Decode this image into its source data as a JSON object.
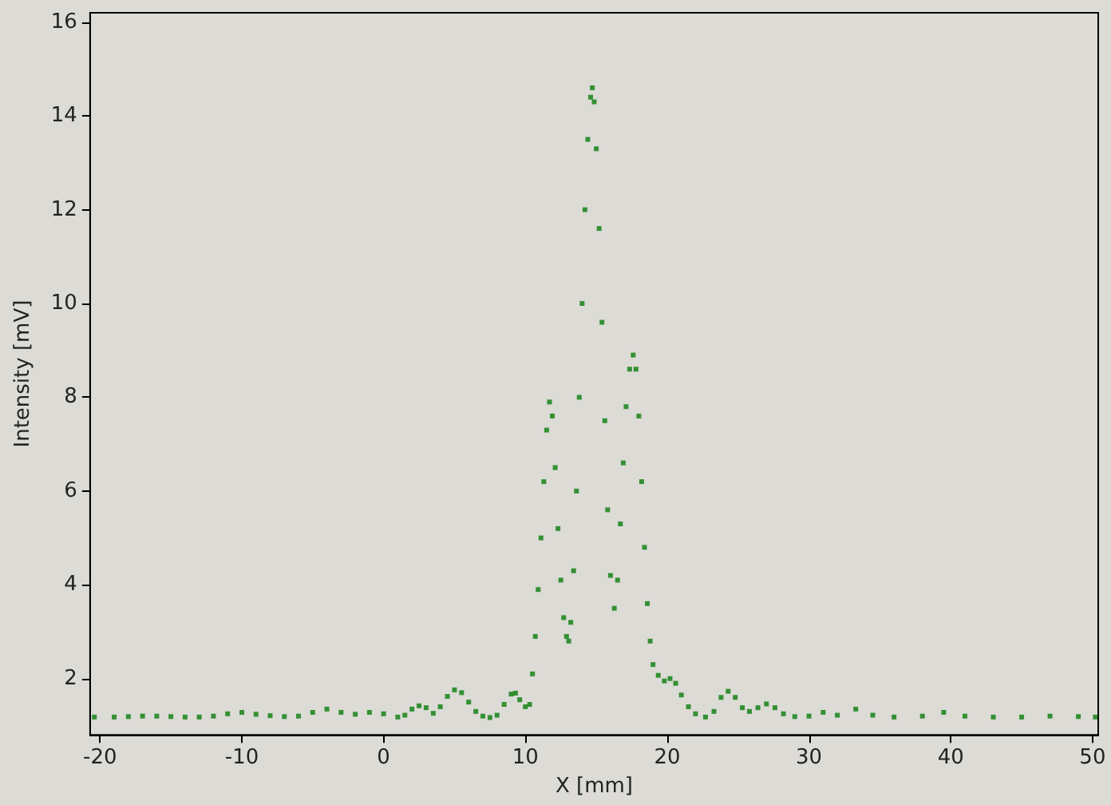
{
  "chart_data": {
    "type": "scatter",
    "xlabel": "X [mm]",
    "ylabel": "Intensity [mV]",
    "marker": "square",
    "grid": false,
    "xlim": [
      -20.7,
      50.4
    ],
    "ylim": [
      0.8,
      16.2
    ],
    "xticks": [
      -20,
      -10,
      0,
      10,
      20,
      30,
      40,
      50
    ],
    "yticks": [
      2,
      4,
      6,
      8,
      10,
      12,
      14,
      16
    ],
    "series": [
      {
        "color": "#0a7d0a",
        "x": [
          -20.4,
          -19,
          -18,
          -17,
          -16,
          -15,
          -14,
          -13,
          -12,
          -11,
          -10,
          -9,
          -8,
          -7,
          -6,
          -5,
          -4,
          -3,
          -2,
          -1,
          0,
          1,
          1.5,
          2,
          2.5,
          3,
          3.5,
          4,
          4.5,
          5,
          5.5,
          6,
          6.5,
          7,
          7.5,
          8,
          8.5,
          9,
          9.3,
          9.6,
          10,
          10.3,
          10.5,
          10.7,
          10.9,
          11.1,
          11.3,
          11.5,
          11.7,
          11.9,
          12.1,
          12.3,
          12.5,
          12.7,
          12.9,
          13.06,
          13.2,
          13.4,
          13.6,
          13.8,
          14.0,
          14.2,
          14.4,
          14.6,
          14.72,
          14.85,
          15.0,
          15.2,
          15.4,
          15.6,
          15.8,
          16.0,
          16.27,
          16.5,
          16.7,
          16.9,
          17.1,
          17.35,
          17.6,
          17.8,
          18.0,
          18.2,
          18.4,
          18.6,
          18.8,
          19.0,
          19.37,
          19.8,
          20.2,
          20.6,
          21,
          21.5,
          22,
          22.7,
          23.3,
          23.8,
          24.3,
          24.8,
          25.3,
          25.8,
          26.4,
          27,
          27.6,
          28.2,
          29,
          30,
          31,
          32,
          33.3,
          34.5,
          36,
          38,
          39.5,
          41,
          43,
          45,
          47,
          49,
          50.2
        ],
        "values": [
          1.18,
          1.18,
          1.19,
          1.2,
          1.2,
          1.19,
          1.18,
          1.18,
          1.2,
          1.25,
          1.28,
          1.24,
          1.21,
          1.19,
          1.2,
          1.28,
          1.35,
          1.28,
          1.24,
          1.28,
          1.25,
          1.18,
          1.22,
          1.35,
          1.42,
          1.38,
          1.26,
          1.4,
          1.62,
          1.76,
          1.7,
          1.5,
          1.3,
          1.2,
          1.17,
          1.22,
          1.45,
          1.67,
          1.69,
          1.55,
          1.4,
          1.45,
          2.1,
          2.9,
          3.9,
          5.0,
          6.2,
          7.3,
          7.9,
          7.6,
          6.5,
          5.2,
          4.1,
          3.3,
          2.9,
          2.8,
          3.2,
          4.3,
          6.0,
          8.0,
          10.0,
          12.0,
          13.5,
          14.4,
          14.6,
          14.3,
          13.3,
          11.6,
          9.6,
          7.5,
          5.6,
          4.2,
          3.5,
          4.1,
          5.3,
          6.6,
          7.8,
          8.6,
          8.9,
          8.6,
          7.6,
          6.2,
          4.8,
          3.6,
          2.8,
          2.3,
          2.07,
          1.95,
          2.0,
          1.9,
          1.65,
          1.4,
          1.25,
          1.18,
          1.3,
          1.6,
          1.73,
          1.6,
          1.38,
          1.3,
          1.38,
          1.46,
          1.38,
          1.25,
          1.19,
          1.2,
          1.28,
          1.22,
          1.35,
          1.22,
          1.18,
          1.2,
          1.28,
          1.2,
          1.18,
          1.18,
          1.2,
          1.19,
          1.18
        ]
      }
    ]
  }
}
